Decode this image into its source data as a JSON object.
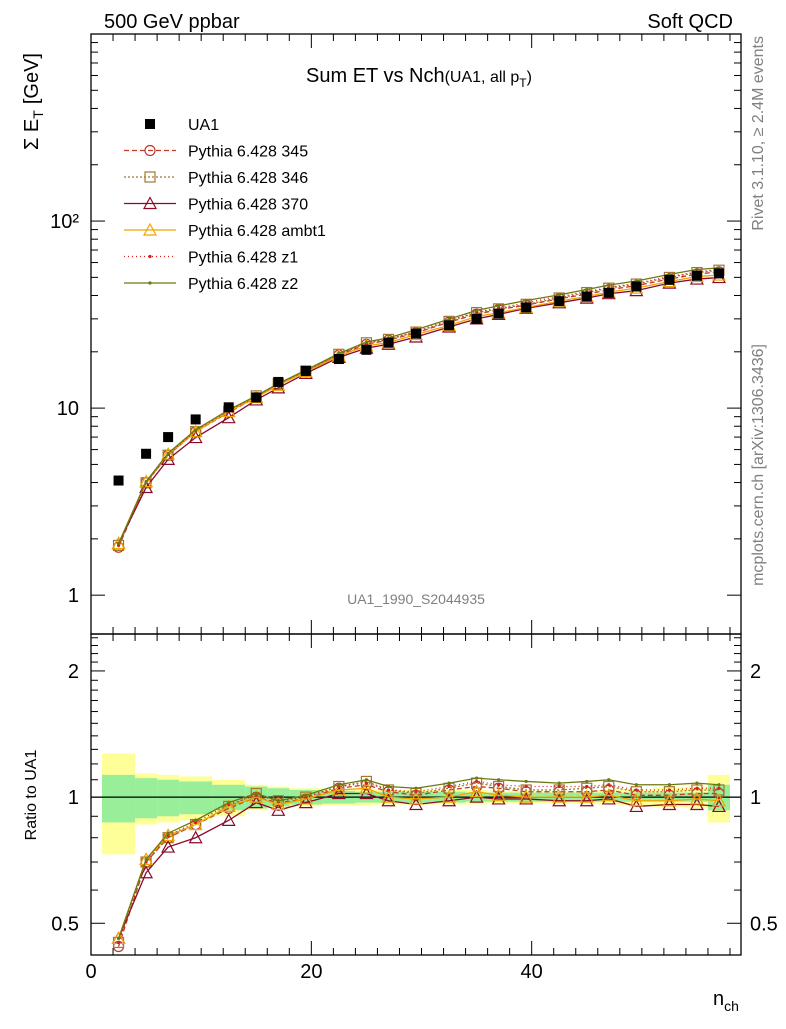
{
  "header": {
    "left": "500 GeV ppbar",
    "right": "Soft QCD"
  },
  "side_labels": {
    "rivet": "Rivet 3.1.10, ≥ 2.4M events",
    "source": "mcplots.cern.ch [arXiv:1306.3436]"
  },
  "chart_data": {
    "type": "line",
    "title": "Sum ET vs Nch",
    "title_suffix": "(UA1, all p",
    "title_sub": "T",
    "title_close": ")",
    "reference_tag": "UA1_1990_S2044935",
    "xlabel": "n",
    "xlabel_sub": "ch",
    "ylabel": "Σ E",
    "ylabel_sub": "T",
    "ylabel_unit": "[GeV]",
    "ratio_ylabel": "Ratio to UA1",
    "xlim": [
      0,
      59
    ],
    "ylim": [
      0.62,
      1000
    ],
    "yscale": "log",
    "ratio_ylim": [
      0.42,
      2.45
    ],
    "ratio_yscale": "log",
    "x_ticks": [
      "0",
      "20",
      "40"
    ],
    "y_ticks": [
      "1",
      "10",
      "10²"
    ],
    "ratio_ticks": [
      "0.5",
      "1",
      "2"
    ],
    "legend_position": "top-left",
    "x": [
      2.5,
      5,
      7,
      9.5,
      12.5,
      15,
      17,
      19.5,
      22.5,
      25,
      27,
      29.5,
      32.5,
      35,
      37,
      39.5,
      42.5,
      45,
      47,
      49.5,
      52.5,
      55,
      57
    ],
    "bin_edges": [
      1,
      4,
      6,
      8,
      11,
      14,
      16,
      18,
      21,
      24,
      26,
      28,
      31,
      34,
      36,
      38,
      41,
      44,
      46,
      48,
      51,
      54,
      56,
      58
    ],
    "data": {
      "name": "UA1",
      "values": [
        4.1,
        5.7,
        7.0,
        8.7,
        10.1,
        11.4,
        13.8,
        15.8,
        18.3,
        20.5,
        22.4,
        25.0,
        27.7,
        30.0,
        32.0,
        34.5,
        37.3,
        39.5,
        41.3,
        44.7,
        48.5,
        51.0,
        52.5
      ],
      "band_inner": [
        0.13,
        0.11,
        0.1,
        0.09,
        0.07,
        0.06,
        0.05,
        0.04,
        0.035,
        0.03,
        0.03,
        0.03,
        0.03,
        0.025,
        0.025,
        0.025,
        0.025,
        0.025,
        0.025,
        0.025,
        0.025,
        0.025,
        0.07
      ],
      "band_outer": [
        0.27,
        0.14,
        0.13,
        0.12,
        0.1,
        0.07,
        0.06,
        0.05,
        0.045,
        0.045,
        0.04,
        0.04,
        0.04,
        0.04,
        0.035,
        0.035,
        0.035,
        0.035,
        0.04,
        0.045,
        0.055,
        0.06,
        0.13
      ]
    },
    "series": [
      {
        "name": "Pythia 6.428 345",
        "color": "#c0392b",
        "dash": "5,3",
        "marker": "circle-open",
        "ratio": [
          0.44,
          0.7,
          0.8,
          0.86,
          0.94,
          1.0,
          0.97,
          0.99,
          1.05,
          1.07,
          1.03,
          1.01,
          1.04,
          1.06,
          1.05,
          1.03,
          1.03,
          1.03,
          1.04,
          1.01,
          1.01,
          1.02,
          1.02
        ]
      },
      {
        "name": "Pythia 6.428 346",
        "color": "#a07830",
        "dash": "2,2",
        "marker": "square-open",
        "ratio": [
          0.45,
          0.7,
          0.8,
          0.86,
          0.95,
          1.02,
          0.98,
          1.0,
          1.06,
          1.09,
          1.04,
          1.02,
          1.05,
          1.08,
          1.06,
          1.04,
          1.04,
          1.05,
          1.06,
          1.03,
          1.03,
          1.04,
          1.04
        ]
      },
      {
        "name": "Pythia 6.428 370",
        "color": "#8b0a2a",
        "dash": "",
        "marker": "triangle-open",
        "ratio": [
          0.46,
          0.66,
          0.76,
          0.8,
          0.88,
          0.97,
          0.93,
          0.97,
          1.02,
          1.02,
          0.98,
          0.96,
          0.98,
          1.0,
          0.99,
          0.99,
          0.98,
          0.98,
          0.99,
          0.95,
          0.96,
          0.96,
          0.95
        ]
      },
      {
        "name": "Pythia 6.428 ambt1",
        "color": "#f0a500",
        "dash": "",
        "marker": "triangle-open",
        "ratio": [
          0.46,
          0.71,
          0.81,
          0.86,
          0.95,
          1.0,
          0.96,
          0.99,
          1.04,
          1.05,
          1.0,
          0.99,
          1.0,
          1.03,
          1.01,
          1.0,
          1.0,
          1.0,
          1.01,
          0.98,
          0.98,
          0.99,
          0.98
        ]
      },
      {
        "name": "Pythia 6.428 z1",
        "color": "#d42020",
        "dash": "1,3",
        "marker": "dot",
        "ratio": [
          0.45,
          0.7,
          0.81,
          0.87,
          0.96,
          1.01,
          0.98,
          1.0,
          1.06,
          1.08,
          1.04,
          1.03,
          1.06,
          1.09,
          1.07,
          1.06,
          1.06,
          1.06,
          1.07,
          1.04,
          1.04,
          1.05,
          1.05
        ]
      },
      {
        "name": "Pythia 6.428 z2",
        "color": "#6b7a10",
        "dash": "",
        "marker": "dot",
        "ratio": [
          0.46,
          0.71,
          0.82,
          0.88,
          0.97,
          1.02,
          0.98,
          1.01,
          1.07,
          1.1,
          1.06,
          1.05,
          1.08,
          1.11,
          1.1,
          1.09,
          1.08,
          1.09,
          1.1,
          1.07,
          1.07,
          1.08,
          1.07
        ]
      }
    ]
  }
}
